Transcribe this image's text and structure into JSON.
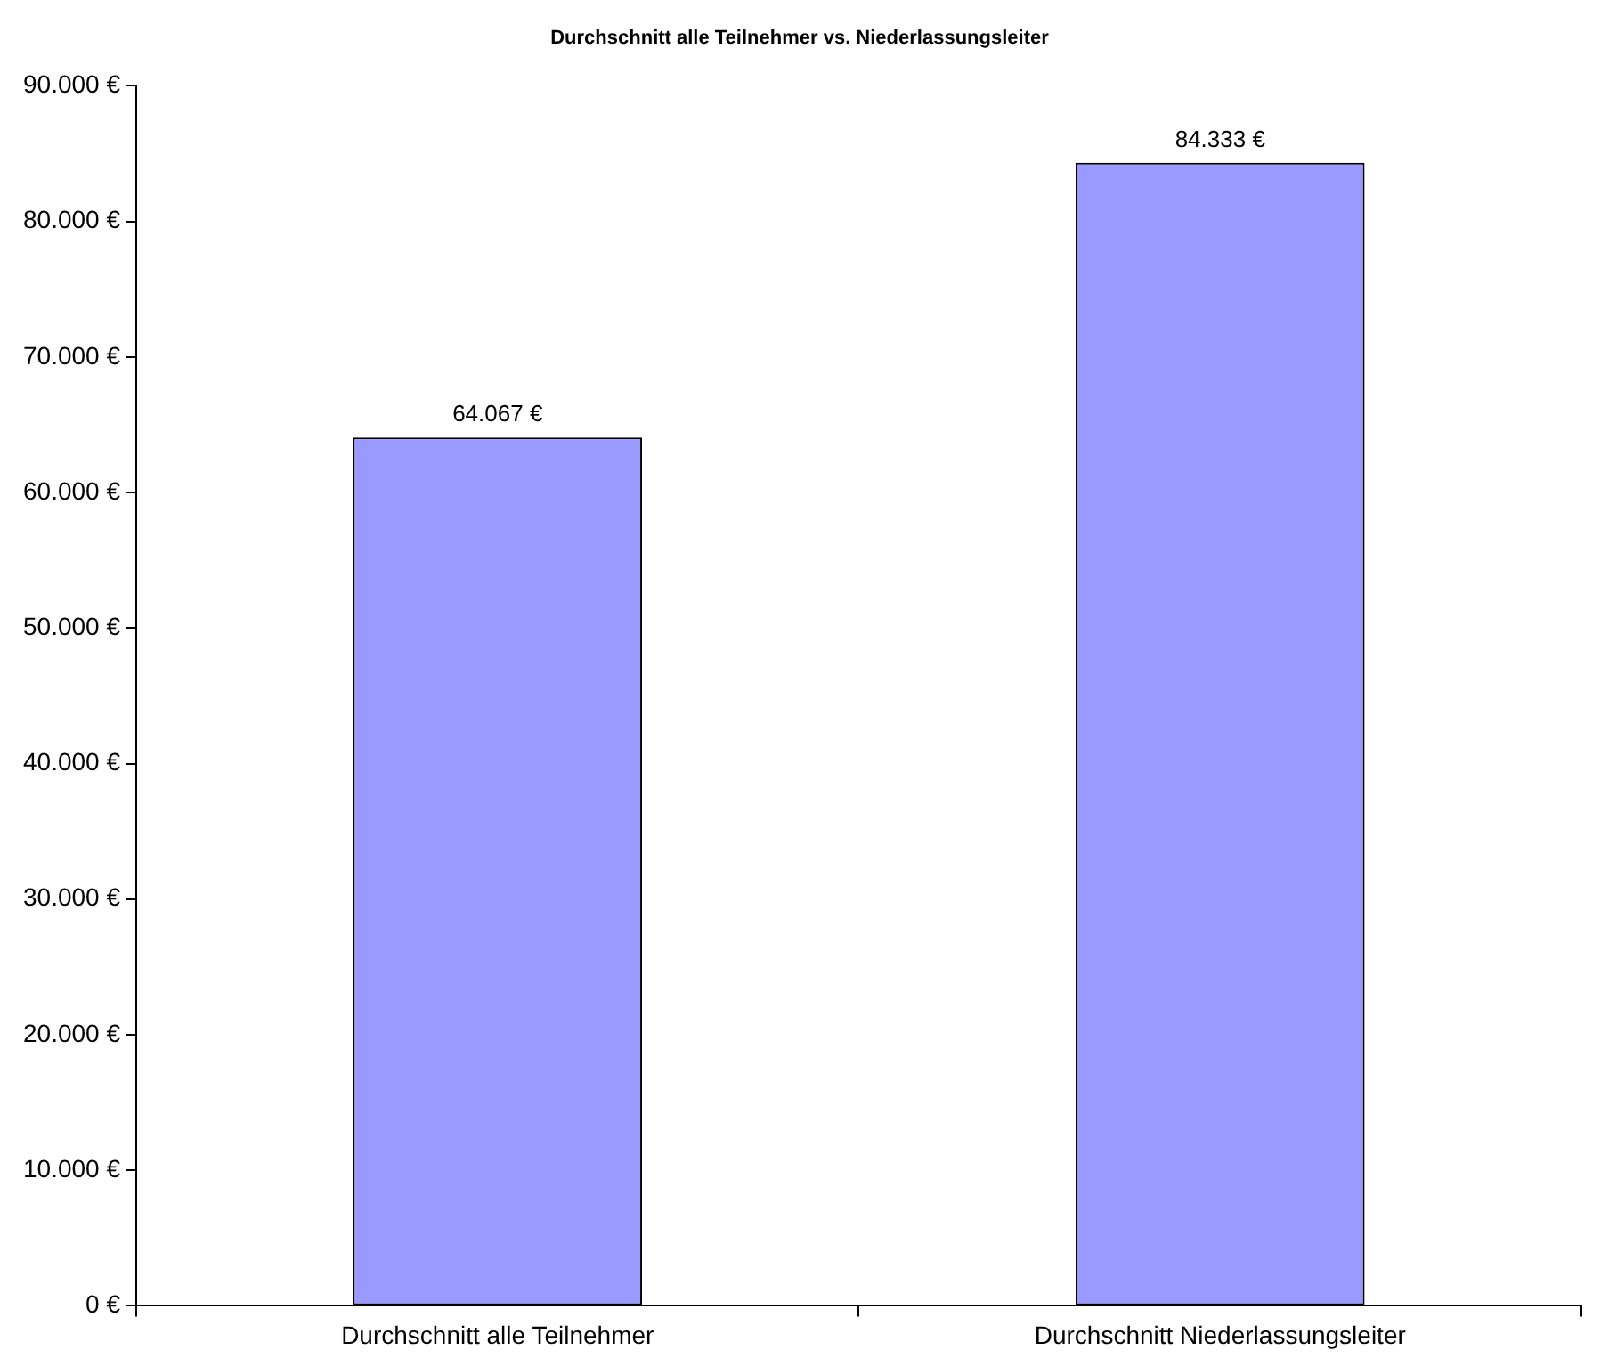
{
  "chart_data": {
    "type": "bar",
    "title": "Durchschnitt alle Teilnehmer vs. Niederlassungsleiter",
    "categories": [
      "Durchschnitt alle Teilnehmer",
      "Durchschnitt Niederlassungsleiter"
    ],
    "values": [
      64067,
      84333
    ],
    "value_labels": [
      "64.067 €",
      "84.333 €"
    ],
    "color": "#9999ff",
    "ylim": [
      0,
      90000
    ],
    "yticks": [
      {
        "value": 0,
        "label": "0 €"
      },
      {
        "value": 10000,
        "label": "10.000 €"
      },
      {
        "value": 20000,
        "label": "20.000 €"
      },
      {
        "value": 30000,
        "label": "30.000 €"
      },
      {
        "value": 40000,
        "label": "40.000 €"
      },
      {
        "value": 50000,
        "label": "50.000 €"
      },
      {
        "value": 60000,
        "label": "60.000 €"
      },
      {
        "value": 70000,
        "label": "70.000 €"
      },
      {
        "value": 80000,
        "label": "80.000 €"
      },
      {
        "value": 90000,
        "label": "90.000 €"
      }
    ]
  }
}
